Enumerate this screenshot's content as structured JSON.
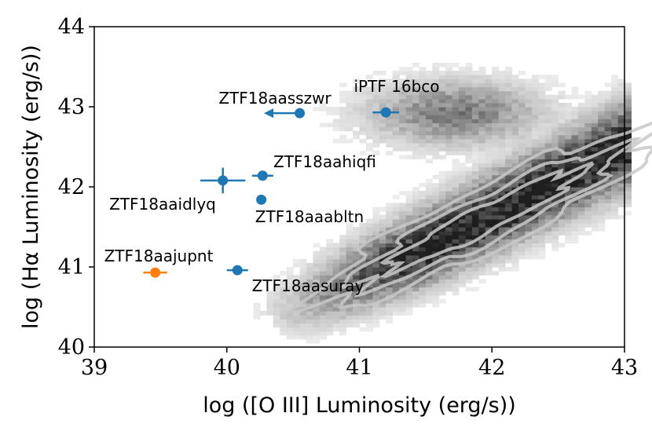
{
  "chart_data": {
    "type": "scatter",
    "title": "",
    "xlabel": "log ([O III] Luminosity (erg/s))",
    "ylabel": "log (Hα Luminosity (erg/s))",
    "xlim": [
      39,
      43
    ],
    "ylim": [
      40,
      44
    ],
    "xticks": [
      "39",
      "40",
      "41",
      "42",
      "43"
    ],
    "yticks": [
      "40",
      "41",
      "42",
      "43",
      "44"
    ],
    "grid": false,
    "colors": {
      "blue": "#1f77b4",
      "orange": "#ff7f0e",
      "background_density": "#555555",
      "contour": "#c8c8c8"
    },
    "background_population": {
      "description_type": "2d-histogram-with-contours",
      "main_ridge": {
        "start": [
          40.4,
          40.3
        ],
        "end": [
          43.0,
          42.5
        ]
      },
      "upper_cloud_center": [
        41.7,
        42.9
      ]
    },
    "points": [
      {
        "name": "ZTF18aasszwr",
        "x": 40.55,
        "y": 42.92,
        "xerr": 0,
        "yerr": 0,
        "upper_limit_x": true,
        "color": "#1f77b4"
      },
      {
        "name": "iPTF 16bco",
        "x": 41.2,
        "y": 42.93,
        "xerr": 0.1,
        "yerr": 0.03,
        "upper_limit_x": false,
        "color": "#1f77b4"
      },
      {
        "name": "ZTF18aahiqfi",
        "x": 40.27,
        "y": 42.14,
        "xerr": 0.08,
        "yerr": 0.05,
        "upper_limit_x": false,
        "color": "#1f77b4"
      },
      {
        "name": "ZTF18aaidlyq",
        "x": 39.97,
        "y": 42.08,
        "xerr": 0.17,
        "yerr": 0.16,
        "upper_limit_x": false,
        "color": "#1f77b4"
      },
      {
        "name": "ZTF18aaabltn",
        "x": 40.26,
        "y": 41.84,
        "xerr": 0.03,
        "yerr": 0.03,
        "upper_limit_x": false,
        "color": "#1f77b4"
      },
      {
        "name": "ZTF18aajupnt",
        "x": 39.46,
        "y": 40.93,
        "xerr": 0.09,
        "yerr": 0.05,
        "upper_limit_x": false,
        "color": "#ff7f0e"
      },
      {
        "name": "ZTF18aasuray",
        "x": 40.08,
        "y": 40.96,
        "xerr": 0.08,
        "yerr": 0.05,
        "upper_limit_x": false,
        "color": "#1f77b4"
      }
    ]
  }
}
